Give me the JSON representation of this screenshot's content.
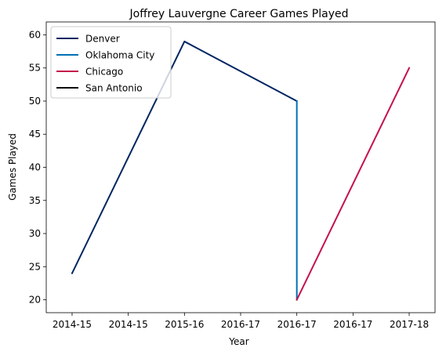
{
  "chart_data": {
    "type": "line",
    "title": "Joffrey Lauvergne Career Games Played",
    "xlabel": "Year",
    "ylabel": "Games Played",
    "x_tick_labels": [
      "2014-15",
      "2014-15",
      "2015-16",
      "2016-17",
      "2016-17",
      "2016-17",
      "2017-18"
    ],
    "xlim": [
      -0.23,
      3.23
    ],
    "ylim": [
      18.05,
      61.95
    ],
    "y_ticks": [
      20,
      25,
      30,
      35,
      40,
      45,
      50,
      55,
      60
    ],
    "grid": false,
    "legend_position": "top-left",
    "series": [
      {
        "name": "Denver",
        "color": "#002561",
        "points": [
          {
            "x": 0,
            "y": 24
          },
          {
            "x": 1,
            "y": 59
          },
          {
            "x": 2,
            "y": 50
          }
        ]
      },
      {
        "name": "Oklahoma City",
        "color": "#0070b5",
        "points": [
          {
            "x": 2,
            "y": 50
          },
          {
            "x": 2,
            "y": 20
          }
        ]
      },
      {
        "name": "Chicago",
        "color": "#c4114b",
        "points": [
          {
            "x": 2,
            "y": 20
          },
          {
            "x": 3,
            "y": 55
          }
        ]
      },
      {
        "name": "San Antonio",
        "color": "#000000",
        "points": []
      }
    ]
  }
}
